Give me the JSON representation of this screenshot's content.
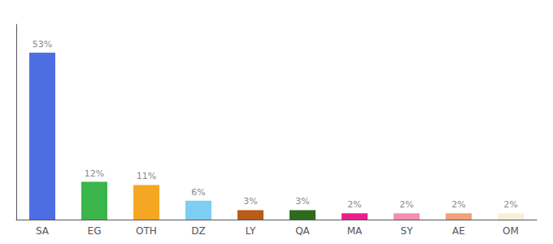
{
  "chart_data": {
    "type": "bar",
    "categories": [
      "SA",
      "EG",
      "OTH",
      "DZ",
      "LY",
      "QA",
      "MA",
      "SY",
      "AE",
      "OM"
    ],
    "values": [
      53,
      12,
      11,
      6,
      3,
      3,
      2,
      2,
      2,
      2
    ],
    "value_labels": [
      "53%",
      "12%",
      "11%",
      "6%",
      "3%",
      "3%",
      "2%",
      "2%",
      "2%",
      "2%"
    ],
    "colors": [
      "#4d6ee3",
      "#3ab54a",
      "#f5a623",
      "#7ecef4",
      "#b85c1a",
      "#2e6b1e",
      "#e91e8c",
      "#f48fb1",
      "#f4a07a",
      "#f5f0d8"
    ],
    "ylim": [
      0,
      62
    ],
    "grid": false,
    "tick_labels": "x"
  }
}
